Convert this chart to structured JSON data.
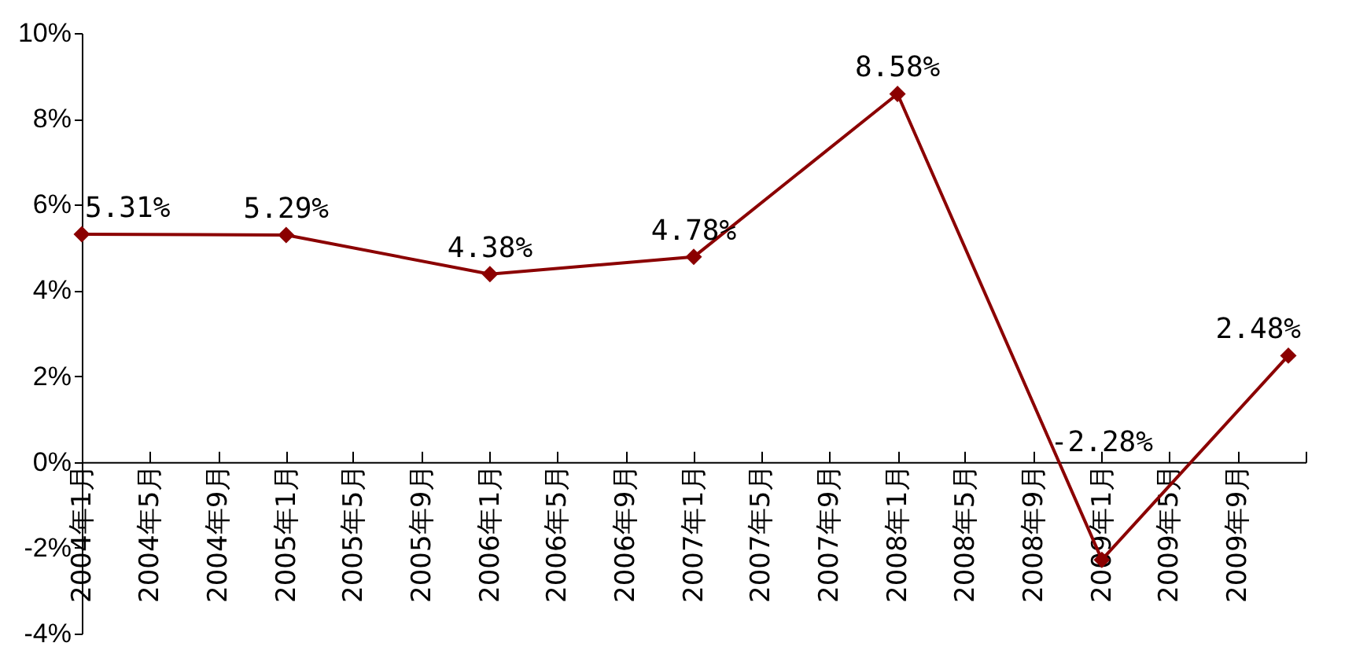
{
  "chart_data": {
    "type": "line",
    "x": [
      "2004-01",
      "2005-01",
      "2006-01",
      "2007-01",
      "2008-01",
      "2009-01",
      "2009-12"
    ],
    "series": [
      {
        "color": "#8b0000",
        "values": [
          5.31,
          5.29,
          4.38,
          4.78,
          8.58,
          -2.28,
          2.48
        ]
      }
    ],
    "xlim": [
      "2004-01",
      "2010-01"
    ],
    "xticks": [
      {
        "value": "2004-01",
        "label": "2004年1月"
      },
      {
        "value": "2004-05",
        "label": "2004年5月"
      },
      {
        "value": "2004-09",
        "label": "2004年9月"
      },
      {
        "value": "2005-01",
        "label": "2005年1月"
      },
      {
        "value": "2005-05",
        "label": "2005年5月"
      },
      {
        "value": "2005-09",
        "label": "2005年9月"
      },
      {
        "value": "2006-01",
        "label": "2006年1月"
      },
      {
        "value": "2006-05",
        "label": "2006年5月"
      },
      {
        "value": "2006-09",
        "label": "2006年9月"
      },
      {
        "value": "2007-01",
        "label": "2007年1月"
      },
      {
        "value": "2007-05",
        "label": "2007年5月"
      },
      {
        "value": "2007-09",
        "label": "2007年9月"
      },
      {
        "value": "2008-01",
        "label": "2008年1月"
      },
      {
        "value": "2008-05",
        "label": "2008年5月"
      },
      {
        "value": "2008-09",
        "label": "2008年9月"
      },
      {
        "value": "2009-01",
        "label": "2009年1月"
      },
      {
        "value": "2009-05",
        "label": "2009年5月"
      },
      {
        "value": "2009-09",
        "label": "2009年9月"
      },
      {
        "value": "2010-01",
        "label": null
      }
    ],
    "ylim": [
      -4,
      10
    ],
    "yticks": [
      {
        "value": -4,
        "label": "-4%"
      },
      {
        "value": -2,
        "label": "-2%"
      },
      {
        "value": 0,
        "label": "0%"
      },
      {
        "value": 2,
        "label": "2%"
      },
      {
        "value": 4,
        "label": "4%"
      },
      {
        "value": 6,
        "label": "6%"
      },
      {
        "value": 8,
        "label": "8%"
      },
      {
        "value": 10,
        "label": "10%"
      }
    ],
    "value_labels": [
      "5.31%",
      "5.29%",
      "4.38%",
      "4.78%",
      "8.58%",
      "-2.28%",
      "2.48%"
    ],
    "marker": "diamond",
    "grid": false
  }
}
